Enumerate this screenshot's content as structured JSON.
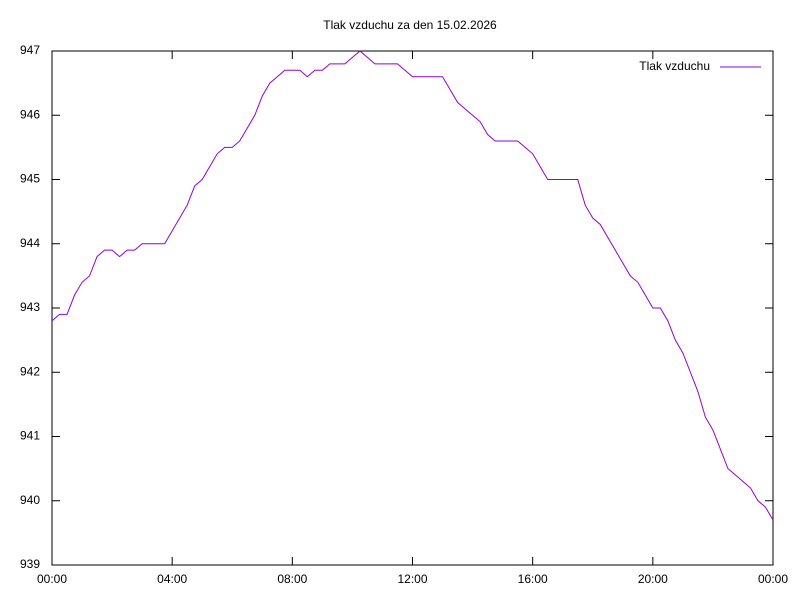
{
  "chart_data": {
    "type": "line",
    "title": "Tlak vzduchu za den 15.02.2026",
    "x": [
      0,
      0.25,
      0.5,
      0.75,
      1,
      1.25,
      1.5,
      1.75,
      2,
      2.25,
      2.5,
      2.75,
      3,
      3.25,
      3.5,
      3.75,
      4,
      4.25,
      4.5,
      4.75,
      5,
      5.25,
      5.5,
      5.75,
      6,
      6.25,
      6.5,
      6.75,
      7,
      7.25,
      7.5,
      7.75,
      8,
      8.25,
      8.5,
      8.75,
      9,
      9.25,
      9.5,
      9.75,
      10,
      10.25,
      10.5,
      10.75,
      11,
      11.25,
      11.5,
      11.75,
      12,
      12.25,
      12.5,
      12.75,
      13,
      13.25,
      13.5,
      13.75,
      14,
      14.25,
      14.5,
      14.75,
      15,
      15.25,
      15.5,
      15.75,
      16,
      16.25,
      16.5,
      16.75,
      17,
      17.25,
      17.5,
      17.75,
      18,
      18.25,
      18.5,
      18.75,
      19,
      19.25,
      19.5,
      19.75,
      20,
      20.25,
      20.5,
      20.75,
      21,
      21.25,
      21.5,
      21.75,
      22,
      22.25,
      22.5,
      22.75,
      23,
      23.25,
      23.5,
      23.75,
      24
    ],
    "series": [
      {
        "name": "Tlak vzduchu",
        "color": "#9400d3",
        "values": [
          942.8,
          942.9,
          942.9,
          943.2,
          943.4,
          943.5,
          943.8,
          943.9,
          943.9,
          943.8,
          943.9,
          943.9,
          944.0,
          944.0,
          944.0,
          944.0,
          944.2,
          944.4,
          944.6,
          944.9,
          945.0,
          945.2,
          945.4,
          945.5,
          945.5,
          945.6,
          945.8,
          946.0,
          946.3,
          946.5,
          946.6,
          946.7,
          946.7,
          946.7,
          946.6,
          946.7,
          946.7,
          946.8,
          946.8,
          946.8,
          946.9,
          947.0,
          946.9,
          946.8,
          946.8,
          946.8,
          946.8,
          946.7,
          946.6,
          946.6,
          946.6,
          946.6,
          946.6,
          946.4,
          946.2,
          946.1,
          946.0,
          945.9,
          945.7,
          945.6,
          945.6,
          945.6,
          945.6,
          945.5,
          945.4,
          945.2,
          945.0,
          945.0,
          945.0,
          945.0,
          945.0,
          944.6,
          944.4,
          944.3,
          944.1,
          943.9,
          943.7,
          943.5,
          943.4,
          943.2,
          943.0,
          943.0,
          942.8,
          942.5,
          942.3,
          942.0,
          941.7,
          941.3,
          941.1,
          940.8,
          940.5,
          940.4,
          940.3,
          940.2,
          940.0,
          939.9,
          939.7
        ]
      }
    ],
    "xlim": [
      0,
      24
    ],
    "xticks": [
      {
        "value": 0,
        "label": "00:00"
      },
      {
        "value": 4,
        "label": "04:00"
      },
      {
        "value": 8,
        "label": "08:00"
      },
      {
        "value": 12,
        "label": "12:00"
      },
      {
        "value": 16,
        "label": "16:00"
      },
      {
        "value": 20,
        "label": "20:00"
      },
      {
        "value": 24,
        "label": "00:00"
      }
    ],
    "ylim": [
      939,
      947
    ],
    "yticks": [
      939,
      940,
      941,
      942,
      943,
      944,
      945,
      946,
      947
    ],
    "legend": "top-right"
  }
}
